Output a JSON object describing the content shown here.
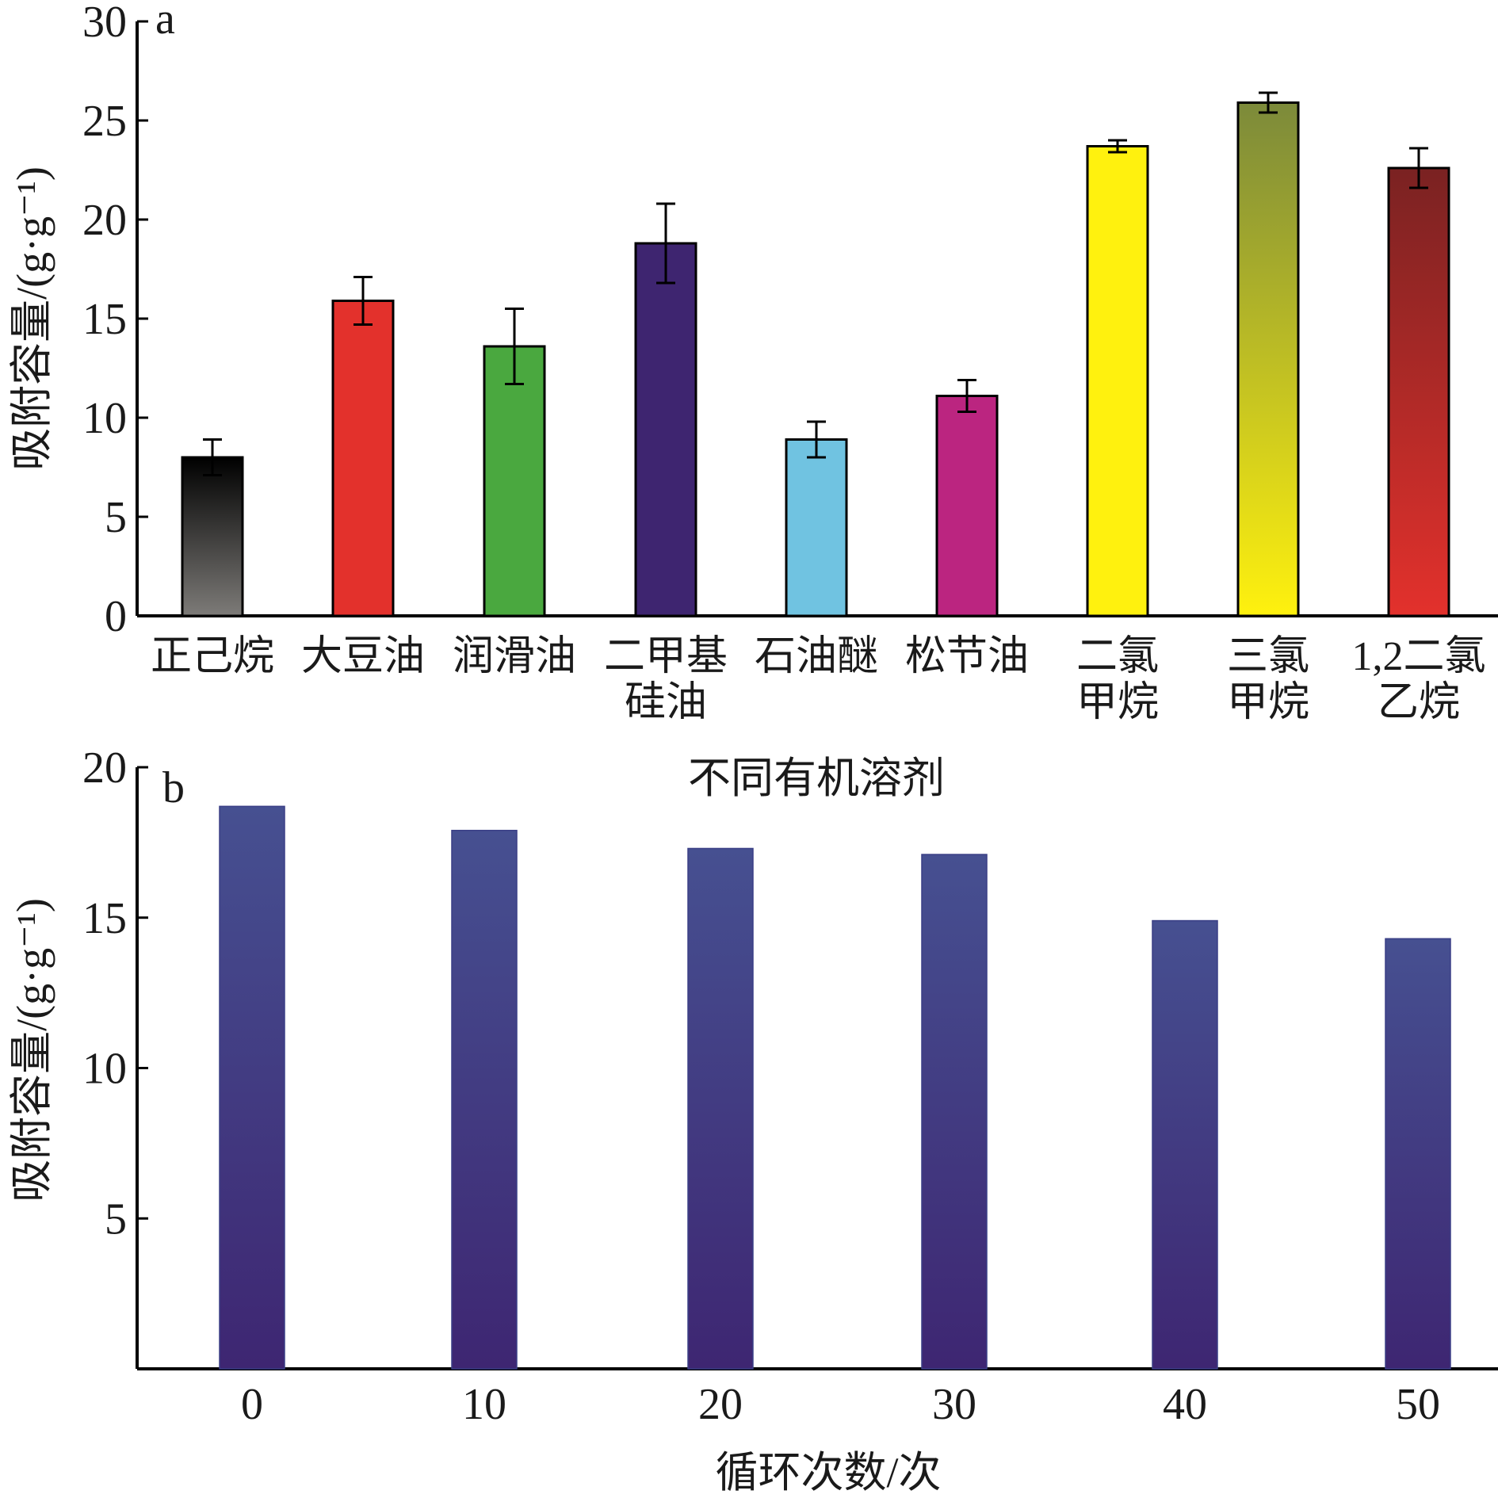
{
  "chart_data": [
    {
      "panel": "a",
      "type": "bar",
      "xlabel": "不同有机溶剂",
      "ylabel": "吸附容量/(g·g⁻¹)",
      "ylim": [
        0,
        30
      ],
      "yticks": [
        0,
        5,
        10,
        15,
        20,
        25,
        30
      ],
      "categories": [
        [
          "正己烷"
        ],
        [
          "大豆油"
        ],
        [
          "润滑油"
        ],
        [
          "二甲基",
          "硅油"
        ],
        [
          "石油醚"
        ],
        [
          "松节油"
        ],
        [
          "二氯",
          "甲烷"
        ],
        [
          "三氯",
          "甲烷"
        ],
        [
          "1,2二氯",
          "乙烷"
        ]
      ],
      "values": [
        8.0,
        15.9,
        13.6,
        18.8,
        8.9,
        11.1,
        23.7,
        25.9,
        22.6
      ],
      "errors": [
        0.9,
        1.2,
        1.9,
        2.0,
        0.9,
        0.8,
        0.3,
        0.5,
        1.0
      ],
      "colors": [
        [
          "#000000",
          "#7d7b78"
        ],
        [
          "#e3312c",
          "#e3312c"
        ],
        [
          "#4aa83f",
          "#4aa83f"
        ],
        [
          "#3e2570",
          "#3e2570"
        ],
        [
          "#70c3e1",
          "#70c3e1"
        ],
        [
          "#bb2580",
          "#bb2580"
        ],
        [
          "#fff10e",
          "#fff10e"
        ],
        [
          "#7c8a3a",
          "#fff10e"
        ],
        [
          "#7a2222",
          "#e3312c"
        ]
      ]
    },
    {
      "panel": "b",
      "type": "bar",
      "xlabel": "循环次数/次",
      "ylabel": "吸附容量/(g·g⁻¹)",
      "ylim": [
        0,
        20
      ],
      "yticks": [
        5,
        10,
        15,
        20
      ],
      "categories": [
        "0",
        "10",
        "20",
        "30",
        "40",
        "50"
      ],
      "values": [
        18.7,
        17.9,
        17.3,
        17.1,
        14.9,
        14.3
      ],
      "colors": [
        "#465091",
        "#3e2672"
      ]
    }
  ]
}
